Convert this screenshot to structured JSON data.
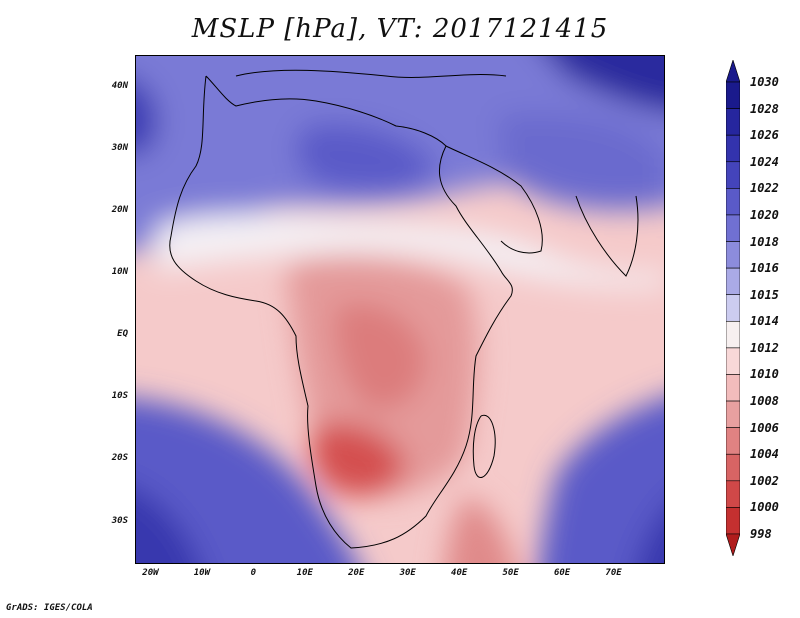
{
  "title": "MSLP [hPa], VT: 2017121415",
  "footer": "GrADS: IGES/COLA",
  "map": {
    "lat_ticks": [
      "40N",
      "30N",
      "20N",
      "10N",
      "EQ",
      "10S",
      "20S",
      "30S"
    ],
    "lon_ticks": [
      "20W",
      "10W",
      "0",
      "10E",
      "20E",
      "30E",
      "40E",
      "50E",
      "60E",
      "70E"
    ]
  },
  "colorbar": {
    "levels": [
      "1030",
      "1028",
      "1026",
      "1024",
      "1022",
      "1020",
      "1018",
      "1016",
      "1015",
      "1014",
      "1012",
      "1010",
      "1008",
      "1006",
      "1004",
      "1002",
      "1000",
      "998"
    ],
    "colors": [
      "#1a1a8c",
      "#26269e",
      "#3333ad",
      "#4444bb",
      "#5a5ac8",
      "#7070d2",
      "#8c8cdc",
      "#aaaae6",
      "#ccccf0",
      "#f7f0f0",
      "#f8d8d8",
      "#f2bcbc",
      "#e8a0a0",
      "#e08282",
      "#d86464",
      "#d04848",
      "#c43030",
      "#b01c1c"
    ]
  },
  "chart_data": {
    "type": "heatmap",
    "title": "MSLP [hPa], VT: 2017121415",
    "variable": "MSLP",
    "units": "hPa",
    "valid_time": "2017121415",
    "xlim": [
      -23,
      80
    ],
    "ylim": [
      -37,
      45
    ],
    "lon_ticks": [
      -20,
      -10,
      0,
      10,
      20,
      30,
      40,
      50,
      60,
      70
    ],
    "lat_ticks": [
      40,
      30,
      20,
      10,
      0,
      -10,
      -20,
      -30
    ],
    "contour_levels": [
      998,
      1000,
      1002,
      1004,
      1006,
      1008,
      1010,
      1012,
      1014,
      1015,
      1016,
      1018,
      1020,
      1022,
      1024,
      1026,
      1028,
      1030
    ],
    "pressure_centers": [
      {
        "lon": 75,
        "lat": 42,
        "hPa": 1030
      },
      {
        "lon": -20,
        "lat": 35,
        "hPa": 1026
      },
      {
        "lon": 10,
        "lat": 28,
        "hPa": 1022
      },
      {
        "lon": 50,
        "lat": 32,
        "hPa": 1022
      },
      {
        "lon": -18,
        "lat": -33,
        "hPa": 1024
      },
      {
        "lon": 70,
        "lat": -33,
        "hPa": 1024
      },
      {
        "lon": 25,
        "lat": -20,
        "hPa": 1004
      },
      {
        "lon": 25,
        "lat": 0,
        "hPa": 1008
      },
      {
        "lon": 20,
        "lat": 15,
        "hPa": 1010
      },
      {
        "lon": 50,
        "lat": -37,
        "hPa": 1008
      }
    ]
  }
}
